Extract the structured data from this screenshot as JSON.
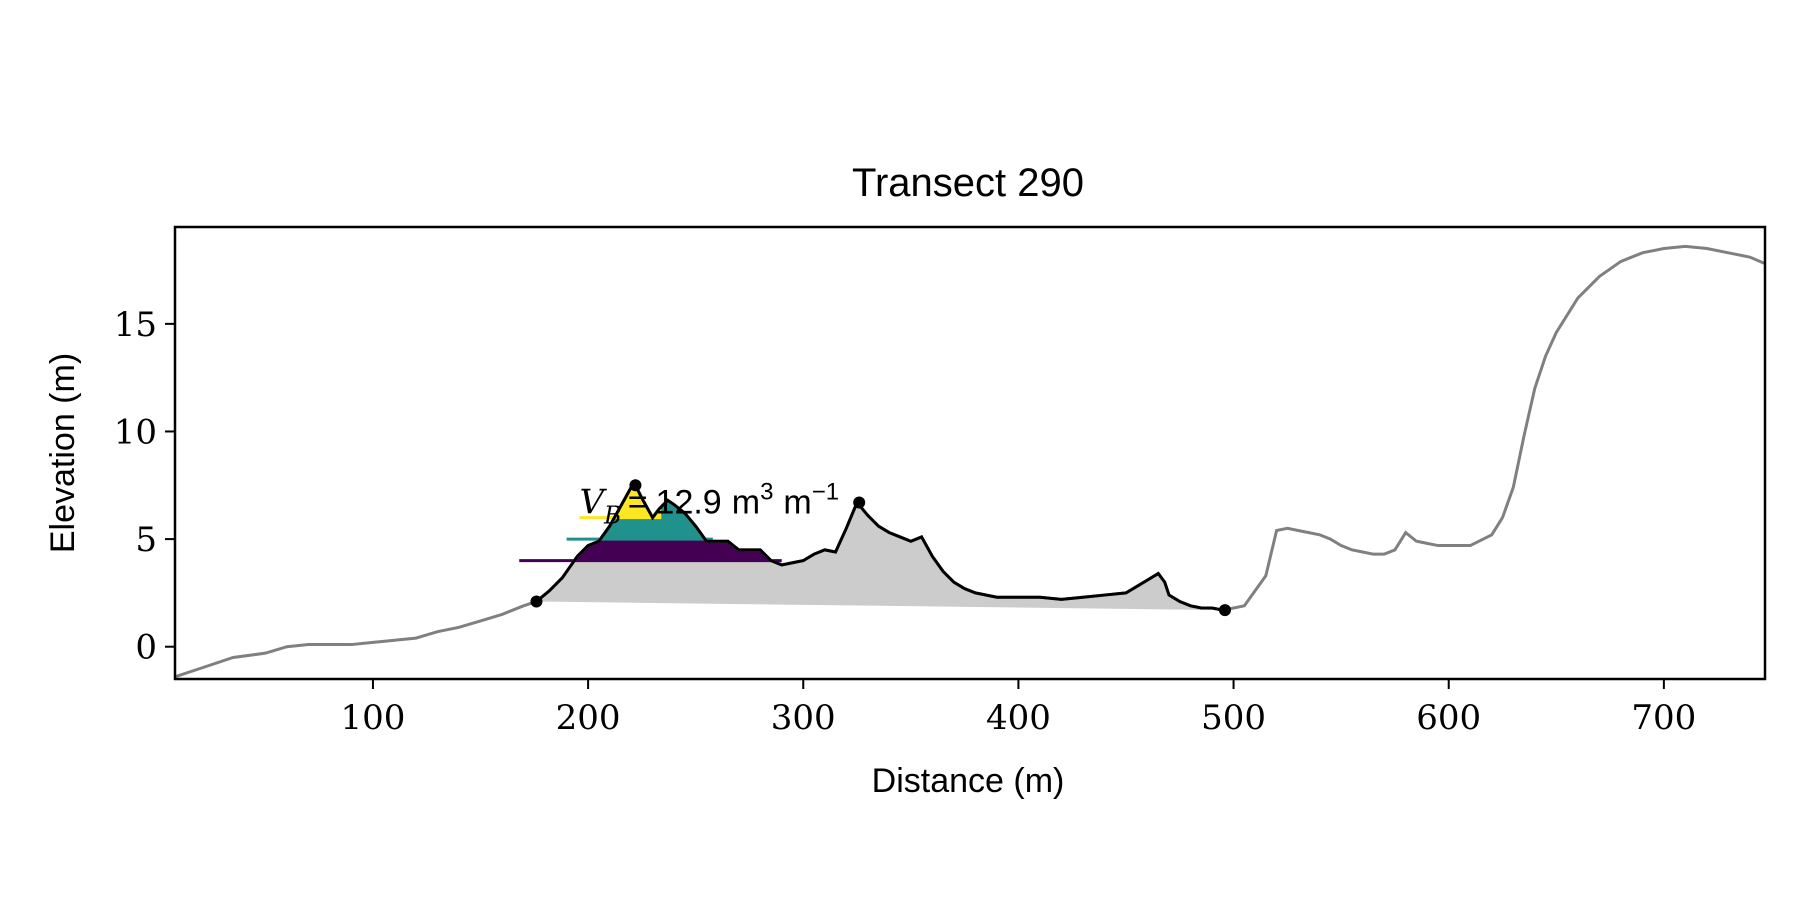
{
  "chart_data": {
    "type": "line",
    "title": "Transect 290",
    "xlabel": "Distance (m)",
    "ylabel": "Elevation (m)",
    "xlim": [
      8,
      747
    ],
    "ylim": [
      -1.5,
      19.5
    ],
    "xticks": [
      100,
      200,
      300,
      400,
      500,
      600,
      700
    ],
    "yticks": [
      0,
      5,
      10,
      15
    ],
    "grid": false,
    "legend": "none",
    "colors": {
      "profile": "#808080",
      "dune_profile": "#000000",
      "volume_fill": "#cccccc",
      "band_low": "#440154",
      "band_mid": "#21918c",
      "band_high": "#fde725",
      "markers": "#000000"
    },
    "profile": {
      "x": [
        8,
        20,
        35,
        50,
        60,
        70,
        80,
        90,
        100,
        110,
        120,
        130,
        140,
        150,
        160,
        170,
        176,
        182,
        188,
        195,
        200,
        205,
        210,
        215,
        220,
        222,
        225,
        230,
        233,
        237,
        240,
        245,
        250,
        255,
        260,
        265,
        270,
        275,
        280,
        285,
        290,
        295,
        300,
        305,
        310,
        315,
        320,
        325,
        330,
        335,
        340,
        345,
        350,
        355,
        360,
        365,
        370,
        375,
        380,
        390,
        400,
        410,
        420,
        430,
        440,
        450,
        460,
        465,
        468,
        470,
        475,
        480,
        485,
        490,
        495,
        500,
        505,
        510,
        515,
        520,
        525,
        530,
        535,
        540,
        545,
        550,
        555,
        560,
        565,
        570,
        575,
        580,
        585,
        590,
        595,
        600,
        610,
        620,
        625,
        630,
        635,
        640,
        645,
        650,
        660,
        670,
        680,
        690,
        700,
        710,
        720,
        730,
        740,
        747
      ],
      "y": [
        -1.4,
        -1.0,
        -0.5,
        -0.3,
        0.0,
        0.1,
        0.1,
        0.1,
        0.2,
        0.3,
        0.4,
        0.7,
        0.9,
        1.2,
        1.5,
        1.9,
        2.1,
        2.6,
        3.2,
        4.2,
        4.7,
        4.9,
        5.6,
        6.5,
        7.4,
        7.5,
        6.9,
        6.0,
        6.4,
        6.8,
        6.6,
        6.2,
        5.6,
        4.9,
        4.9,
        4.9,
        4.5,
        4.5,
        4.5,
        4.0,
        3.8,
        3.9,
        4.0,
        4.3,
        4.5,
        4.4,
        5.5,
        6.7,
        6.1,
        5.6,
        5.3,
        5.1,
        4.9,
        5.1,
        4.2,
        3.5,
        3.0,
        2.7,
        2.5,
        2.3,
        2.3,
        2.3,
        2.2,
        2.3,
        2.4,
        2.5,
        3.1,
        3.4,
        3.0,
        2.4,
        2.1,
        1.9,
        1.8,
        1.8,
        1.7,
        1.8,
        1.9,
        2.6,
        3.3,
        5.4,
        5.5,
        5.4,
        5.3,
        5.2,
        5.0,
        4.7,
        4.5,
        4.4,
        4.3,
        4.3,
        4.5,
        5.3,
        4.9,
        4.8,
        4.7,
        4.7,
        4.7,
        5.2,
        6.0,
        7.4,
        9.8,
        12.0,
        13.5,
        14.6,
        16.2,
        17.2,
        17.9,
        18.3,
        18.5,
        18.6,
        18.5,
        18.3,
        18.1,
        17.8
      ]
    },
    "dune": {
      "x_start": 176,
      "x_end": 496,
      "toe_start": {
        "x": 176,
        "y": 2.1
      },
      "toe_end": {
        "x": 496,
        "y": 1.7
      },
      "crest": {
        "x": 222,
        "y": 7.5
      },
      "secondary_crest": {
        "x": 326,
        "y": 6.7
      }
    },
    "bands": [
      {
        "level": 4.0,
        "x_start": 168,
        "x_end": 290
      },
      {
        "level": 5.0,
        "x_start": 190,
        "x_end": 258
      },
      {
        "level": 6.0,
        "x_start": 196,
        "x_end": 234
      }
    ],
    "annotation": {
      "symbol": "V",
      "subscript": "B",
      "equals": "=",
      "value": "12.9",
      "unit": "m",
      "unit_exp": "3",
      "per": "m",
      "per_exp": "−1",
      "x": 196,
      "y": 6.2
    }
  }
}
